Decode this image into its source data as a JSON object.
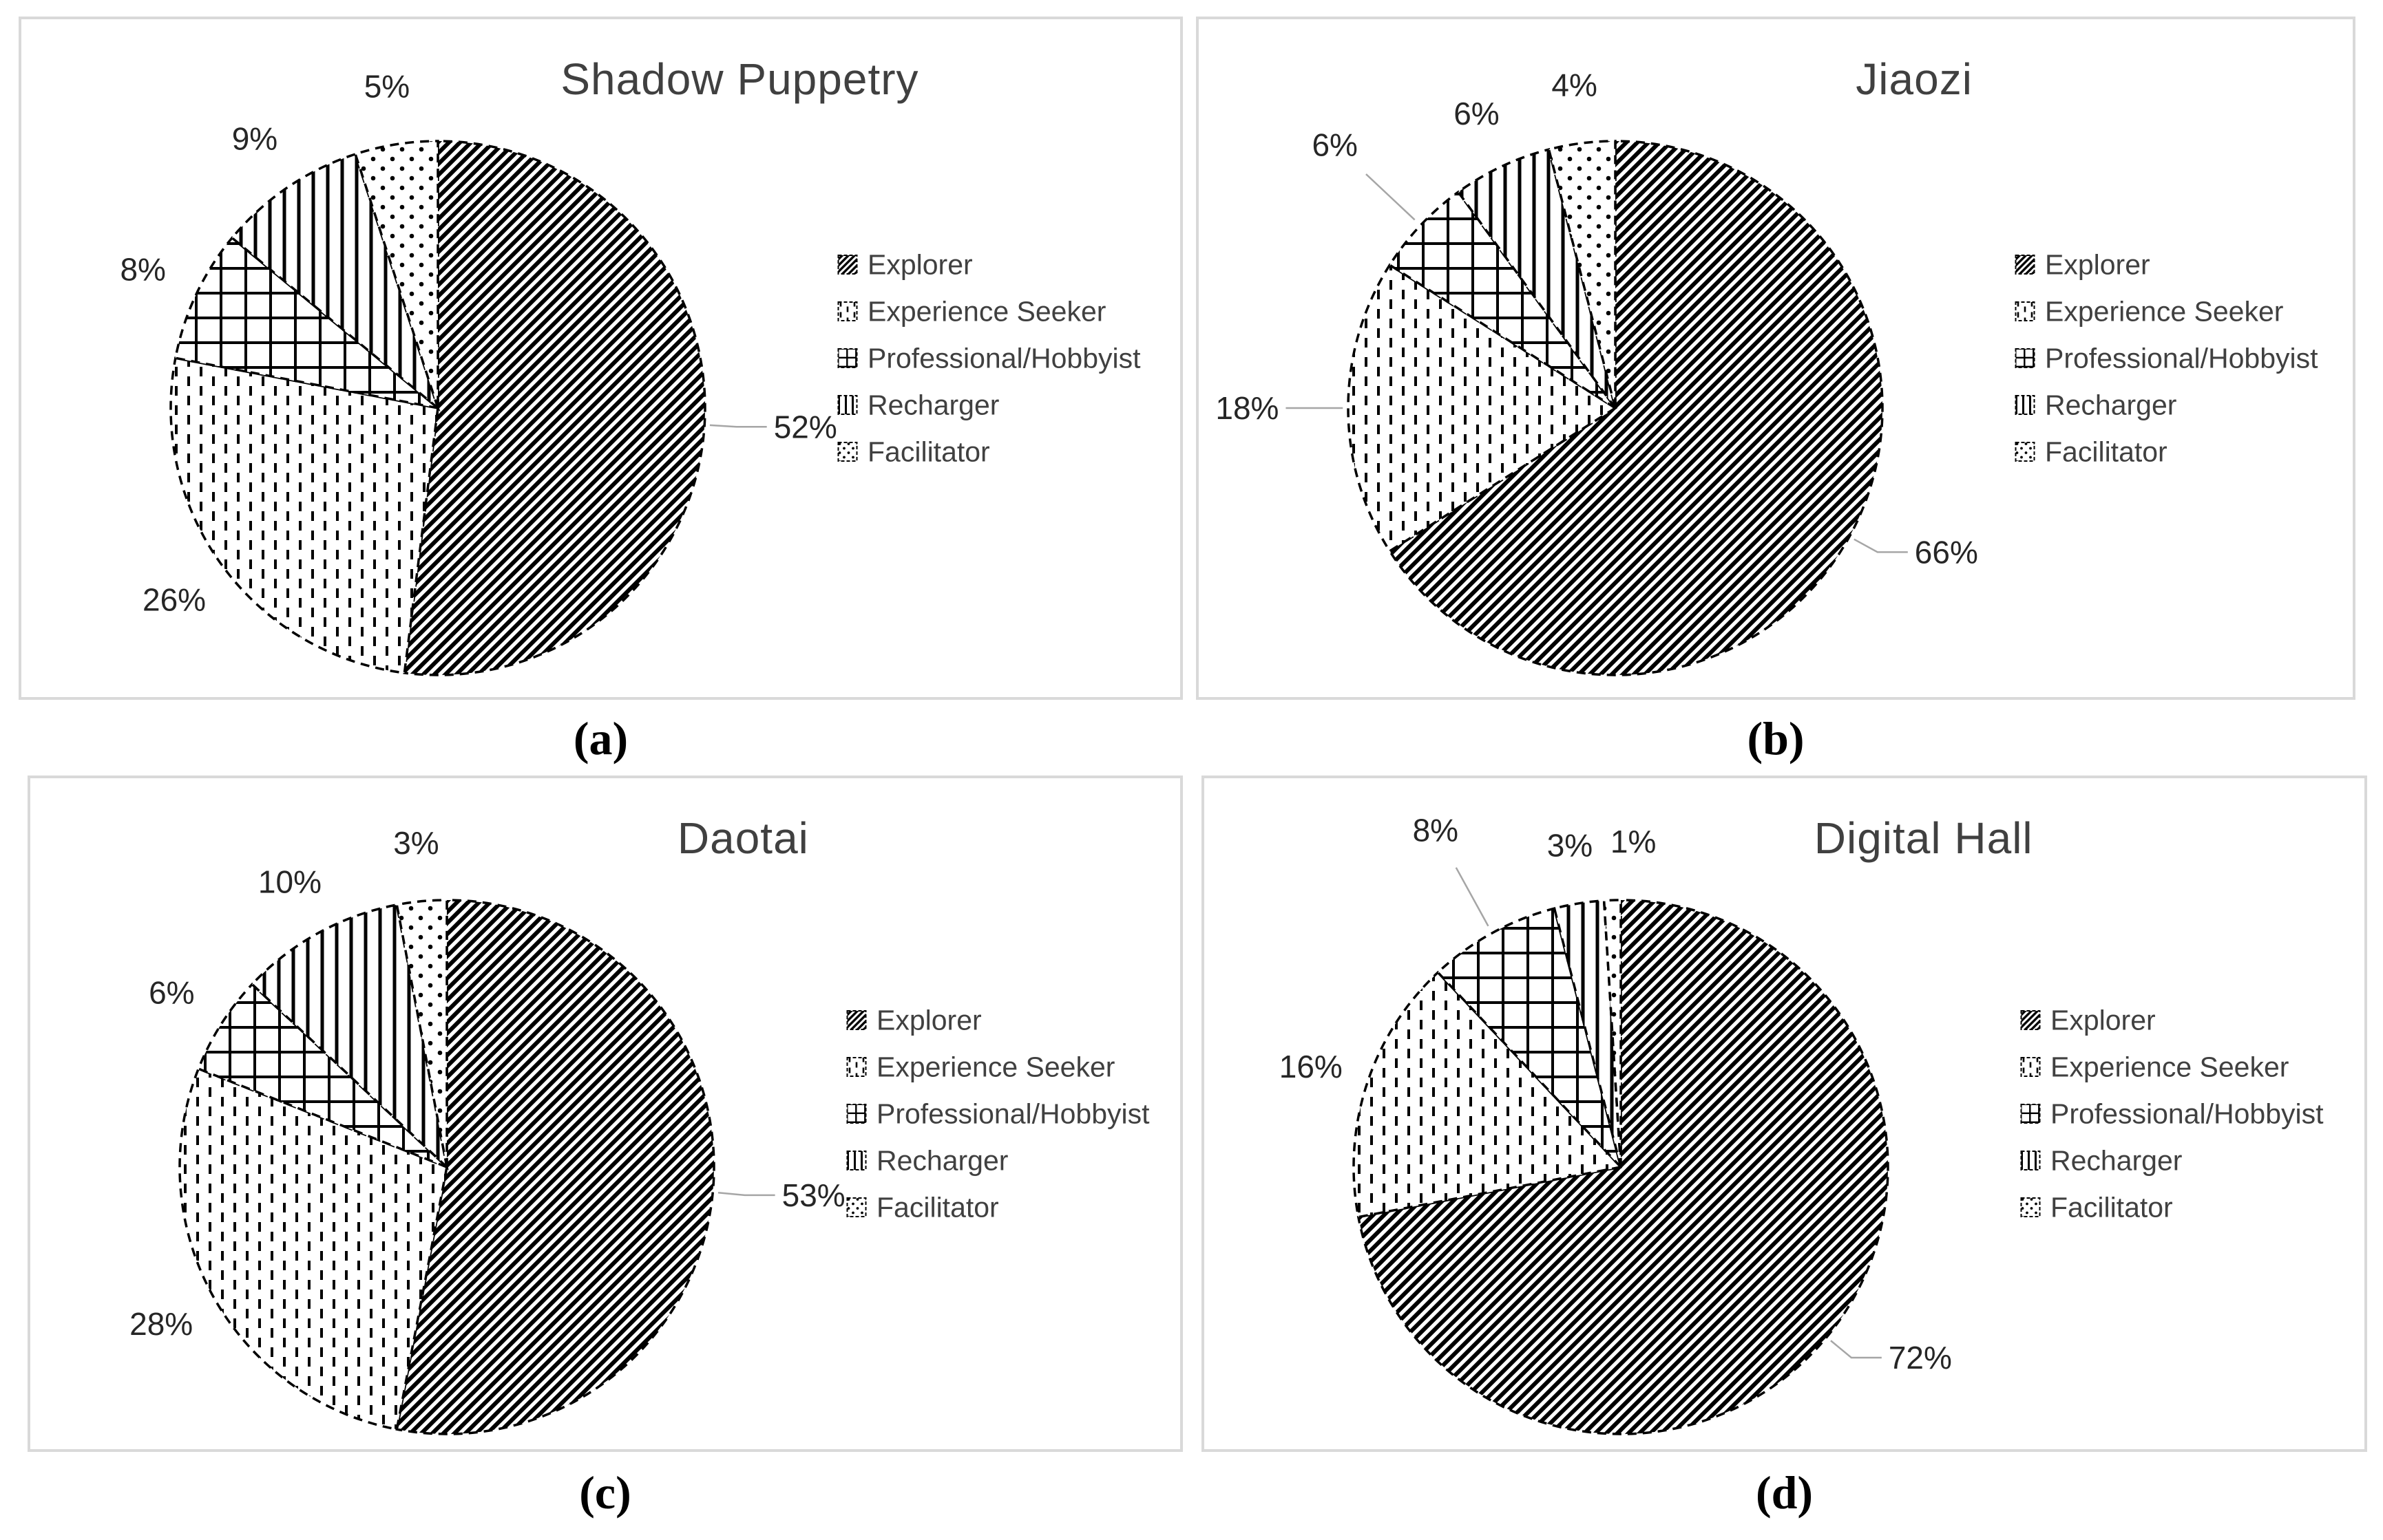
{
  "colors": {
    "pattern_ink": "#000000",
    "slice_fill_bg": "#ffffff",
    "label_text": "#262626",
    "title_text": "#404040",
    "legend_text": "#404040",
    "leader_line": "#a6a6a6",
    "panel_border": "#d9d9d9",
    "caption_text": "#000000",
    "background": "#ffffff"
  },
  "legend": {
    "items": [
      "Explorer",
      "Experience Seeker",
      "Professional/Hobbyist",
      "Recharger",
      "Facilitator"
    ]
  },
  "chart_data": [
    {
      "type": "pie",
      "panel": "a",
      "caption": "(a)",
      "title": "Shadow Puppetry",
      "categories": [
        "Explorer",
        "Experience Seeker",
        "Professional/Hobbyist",
        "Recharger",
        "Facilitator"
      ],
      "values": [
        52,
        26,
        8,
        9,
        5
      ],
      "labels": [
        "52%",
        "26%",
        "8%",
        "9%",
        "5%"
      ],
      "patterns": [
        "diagonal-stripes",
        "dashed-vertical-lines",
        "grid-crosshatch",
        "vertical-lines",
        "dots"
      ],
      "callouts": [
        "elbow",
        "none",
        "none",
        "none",
        "none"
      ],
      "unit": "percent",
      "start_angle_deg": 0,
      "direction": "clockwise",
      "legend_position": "right"
    },
    {
      "type": "pie",
      "panel": "b",
      "caption": "(b)",
      "title": "Jiaozi",
      "categories": [
        "Explorer",
        "Experience Seeker",
        "Professional/Hobbyist",
        "Recharger",
        "Facilitator"
      ],
      "values": [
        66,
        18,
        6,
        6,
        4
      ],
      "labels": [
        "66%",
        "18%",
        "6%",
        "6%",
        "4%"
      ],
      "patterns": [
        "diagonal-stripes",
        "dashed-vertical-lines",
        "grid-crosshatch",
        "vertical-lines",
        "dots"
      ],
      "callouts": [
        "elbow",
        "elbow",
        "straight",
        "none",
        "none"
      ],
      "unit": "percent",
      "start_angle_deg": 0,
      "direction": "clockwise",
      "legend_position": "right"
    },
    {
      "type": "pie",
      "panel": "c",
      "caption": "(c)",
      "title": "Daotai",
      "categories": [
        "Explorer",
        "Experience Seeker",
        "Professional/Hobbyist",
        "Recharger",
        "Facilitator"
      ],
      "values": [
        53,
        28,
        6,
        10,
        3
      ],
      "labels": [
        "53%",
        "28%",
        "6%",
        "10%",
        "3%"
      ],
      "patterns": [
        "diagonal-stripes",
        "dashed-vertical-lines",
        "grid-crosshatch",
        "vertical-lines",
        "dots"
      ],
      "callouts": [
        "elbow",
        "none",
        "none",
        "none",
        "none"
      ],
      "unit": "percent",
      "start_angle_deg": 0,
      "direction": "clockwise",
      "legend_position": "right"
    },
    {
      "type": "pie",
      "panel": "d",
      "caption": "(d)",
      "title": "Digital Hall",
      "categories": [
        "Explorer",
        "Experience Seeker",
        "Professional/Hobbyist",
        "Recharger",
        "Facilitator"
      ],
      "values": [
        72,
        16,
        8,
        3,
        1
      ],
      "labels": [
        "72%",
        "16%",
        "8%",
        "3%",
        "1%"
      ],
      "patterns": [
        "diagonal-stripes",
        "dashed-vertical-lines",
        "grid-crosshatch",
        "vertical-lines",
        "dots"
      ],
      "callouts": [
        "elbow",
        "none",
        "straight",
        "none",
        "none"
      ],
      "unit": "percent",
      "start_angle_deg": 0,
      "direction": "clockwise",
      "legend_position": "right"
    }
  ]
}
